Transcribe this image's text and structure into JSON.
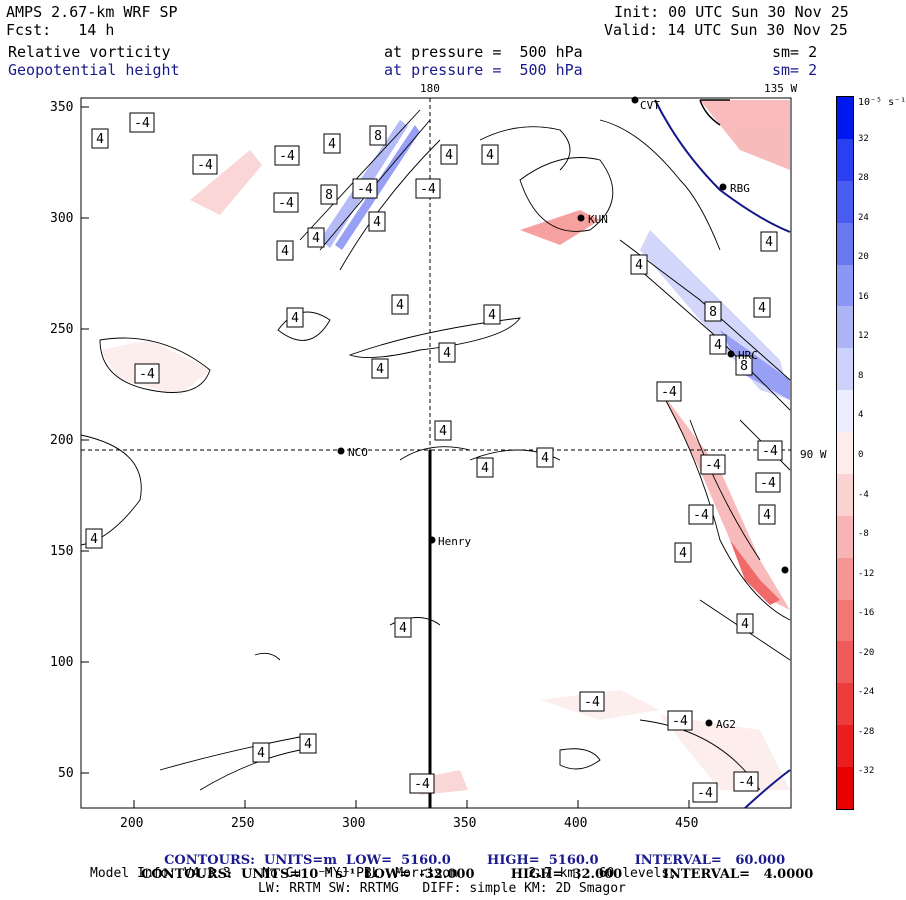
{
  "header": {
    "model": "AMPS 2.67-km WRF SP",
    "forecast": "Fcst:   14 h",
    "init": "Init: 00 UTC Sun 30 Nov 25",
    "valid": "Valid: 14 UTC Sun 30 Nov 25",
    "field1_name": "Relative vorticity",
    "field1_level": "at pressure =  500 hPa",
    "field1_sm": "sm= 2",
    "field2_name": "Geopotential height",
    "field2_level": "at pressure =  500 hPa",
    "field2_sm": "sm= 2"
  },
  "map": {
    "top_labels": {
      "lon_180": "180",
      "lon_135w": "135 W"
    },
    "right_label": "90 W",
    "x_ticks": [
      "200",
      "250",
      "300",
      "350",
      "400",
      "450"
    ],
    "y_ticks": [
      "350",
      "300",
      "250",
      "200",
      "150",
      "100",
      "50"
    ],
    "stations": [
      {
        "id": "NCO",
        "label": "NCO"
      },
      {
        "id": "henry",
        "label": "Henry"
      },
      {
        "id": "rbg",
        "label": "RBG"
      },
      {
        "id": "kun",
        "label": "KUN"
      },
      {
        "id": "hrc",
        "label": "HRC"
      },
      {
        "id": "ag2",
        "label": "AG2"
      },
      {
        "id": "top",
        "label": "CVT"
      }
    ]
  },
  "colorbar": {
    "unit": "10⁻⁵ s⁻¹",
    "labels": [
      "32",
      "28",
      "24",
      "20",
      "16",
      "12",
      "8",
      "4",
      "0",
      "-4",
      "-8",
      "-12",
      "-16",
      "-20",
      "-24",
      "-28",
      "-32"
    ],
    "colors": [
      "#0018f0",
      "#2a40f0",
      "#4a5cf0",
      "#6a78f0",
      "#8c96f4",
      "#adb4f6",
      "#cdd2fa",
      "#eceefd",
      "#fdecec",
      "#fbd2d2",
      "#f8b4b4",
      "#f59696",
      "#f27878",
      "#ef5a5a",
      "#ec3c3c",
      "#ea1e1e",
      "#e80000"
    ]
  },
  "contour_labels": [
    "-4",
    "4",
    "8"
  ],
  "footer": {
    "line1_prefix": "CONTOURS:  UNITS=m  LOW=  5160.0",
    "line1_high": "HIGH=  5160.0",
    "line1_interval": "INTERVAL=   60.000",
    "line2_prefix": "CONTOURS:  UNITS=10⁻⁵ s⁻¹  LOW=  -32.000",
    "line2_high": "HIGH=  32.000",
    "line2_interval": "INTERVAL=   4.0000",
    "model_info": "Model Info: V4.3.3    No Cu   MYJ PBL  Morrison         2.7 km,  60 levels,",
    "model_info2": "LW: RRTM SW: RRTMG   DIFF: simple KM: 2D Smagor"
  }
}
